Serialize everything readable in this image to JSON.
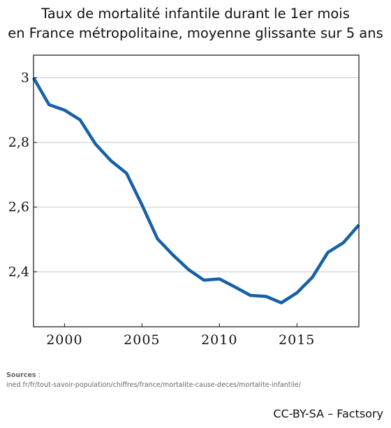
{
  "title_line1": "Taux de mortalité infantile durant le 1er mois",
  "title_line2": "en France métropolitaine, moyenne glissante sur 5 ans",
  "sources_label": "Sources",
  "sources_sep": " :",
  "sources_url": "ined.fr/fr/tout-savoir-population/chiffres/france/mortalite-cause-deces/mortalite-infantile/",
  "license": "CC-BY-SA – Factsory",
  "chart_data": {
    "type": "line",
    "title": "Taux de mortalité infantile durant le 1er mois en France métropolitaine, moyenne glissante sur 5 ans",
    "xlabel": "",
    "ylabel": "",
    "xlim": [
      1998,
      2019
    ],
    "ylim": [
      2.23,
      3.07
    ],
    "grid": true,
    "line_color": "#1760a8",
    "xticks": [
      2000,
      2005,
      2010,
      2015
    ],
    "xtick_labels": [
      "2000",
      "2005",
      "2010",
      "2015"
    ],
    "yticks": [
      2.4,
      2.6,
      2.8,
      3.0
    ],
    "ytick_labels": [
      "2,4",
      "2,6",
      "2,8",
      "3"
    ],
    "series": [
      {
        "x": [
          1998,
          1999,
          2000,
          2001,
          2002,
          2003,
          2004,
          2005,
          2006,
          2007,
          2008,
          2009,
          2010,
          2011,
          2012,
          2013,
          2014,
          2015,
          2016,
          2017,
          2018,
          2019
        ],
        "y": [
          3.0,
          2.917,
          2.9,
          2.87,
          2.795,
          2.743,
          2.705,
          2.607,
          2.502,
          2.452,
          2.407,
          2.374,
          2.378,
          2.353,
          2.327,
          2.324,
          2.304,
          2.335,
          2.383,
          2.46,
          2.49,
          2.545
        ]
      }
    ]
  }
}
